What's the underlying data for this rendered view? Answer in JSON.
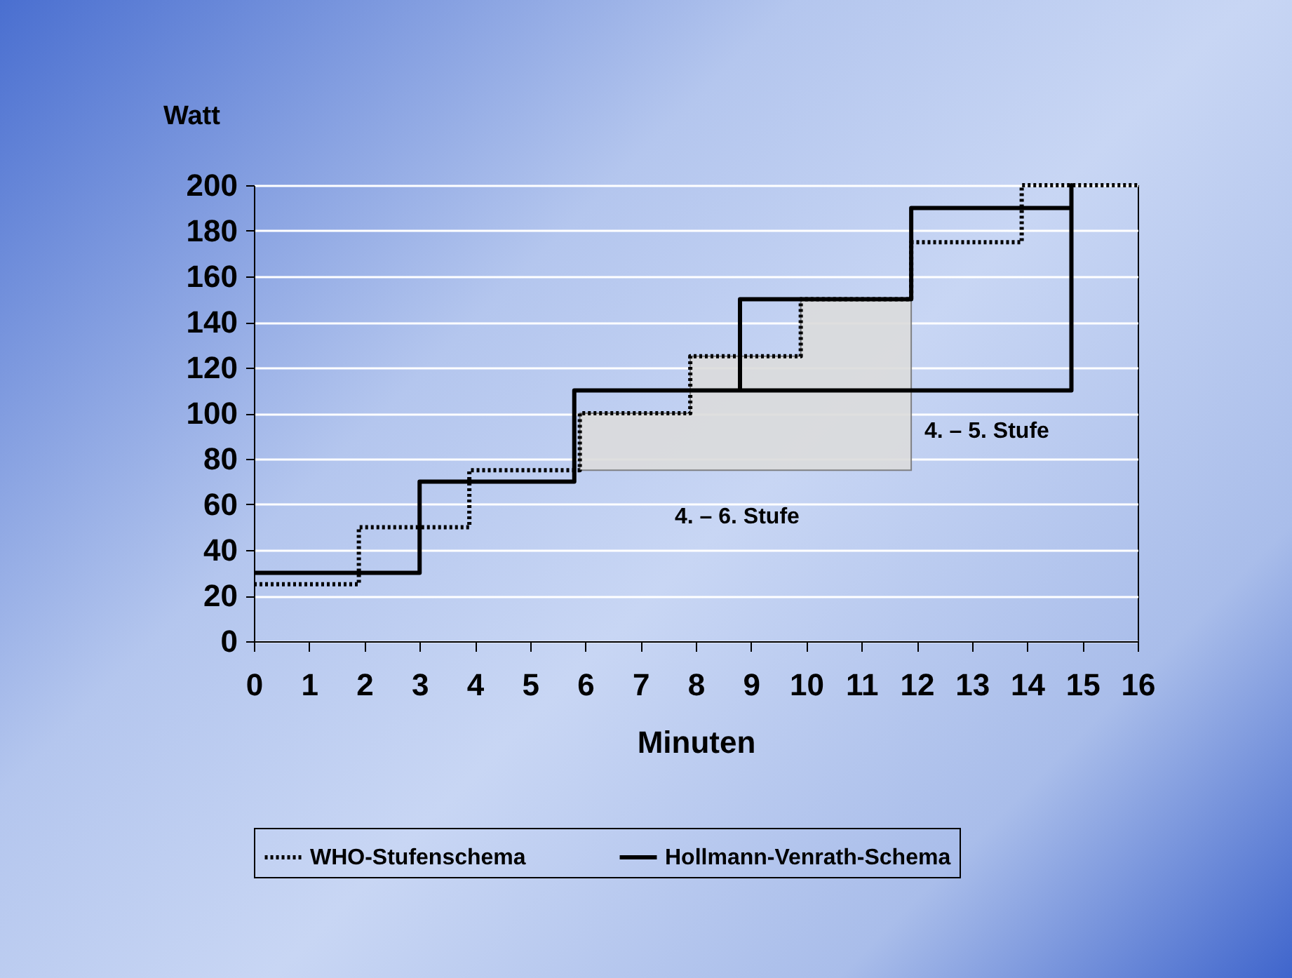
{
  "chart_data": {
    "type": "line",
    "ylabel": "Watt",
    "xlabel": "Minuten",
    "xlim": [
      0,
      16
    ],
    "xticks": [
      0,
      1,
      2,
      3,
      4,
      5,
      6,
      7,
      8,
      9,
      10,
      11,
      12,
      13,
      14,
      15,
      16
    ],
    "ylim": [
      0,
      200
    ],
    "yticks": [
      0,
      20,
      40,
      60,
      80,
      100,
      120,
      140,
      160,
      180,
      200
    ],
    "grid": "y",
    "legend": "bottom",
    "marker": "none",
    "series": [
      {
        "name": "WHO-Stufenschema",
        "type": "step",
        "color": "#000000",
        "line_style": "dotted",
        "x": [
          0,
          1.9,
          3.9,
          5.9,
          7.9,
          9.9,
          11.9,
          13.9,
          16
        ],
        "values": [
          25,
          50,
          75,
          100,
          125,
          150,
          175,
          200,
          200
        ],
        "lower": [
          null,
          null,
          null,
          75,
          75,
          75,
          75,
          null,
          null
        ],
        "upper": [
          null,
          null,
          null,
          100,
          125,
          150,
          175,
          null,
          null
        ]
      },
      {
        "name": "Hollmann-Venrath-Schema",
        "type": "line",
        "color": "#000000",
        "line_style": "solid",
        "x": [
          0,
          3,
          3,
          5.8,
          5.8,
          8.8,
          8.8,
          11.9,
          11.9,
          14.8,
          14.8,
          14.8,
          8.8
        ],
        "values": [
          30,
          30,
          70,
          70,
          110,
          110,
          150,
          150,
          190,
          190,
          200,
          110,
          110
        ]
      }
    ],
    "annotations": [
      "4. – 5. Stufe",
      "4. – 6. Stufe"
    ]
  }
}
